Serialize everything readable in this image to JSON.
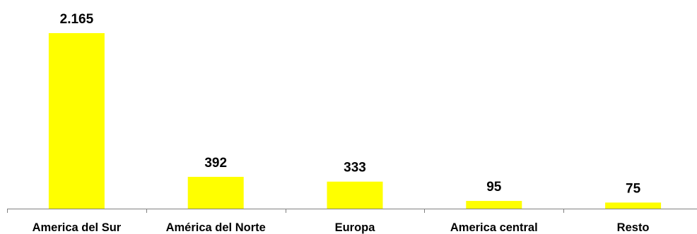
{
  "chart_data": {
    "type": "bar",
    "categories": [
      "America del Sur",
      "América del Norte",
      "Europa",
      "America central",
      "Resto"
    ],
    "values": [
      2165,
      392,
      333,
      95,
      75
    ],
    "value_labels": [
      "2.165",
      "392",
      "333",
      "95",
      "75"
    ],
    "title": "",
    "xlabel": "",
    "ylabel": "",
    "ylim": [
      0,
      2165
    ],
    "grid": false,
    "legend": "none",
    "bar_color": "#FFFF00",
    "axis_color": "#808080"
  }
}
